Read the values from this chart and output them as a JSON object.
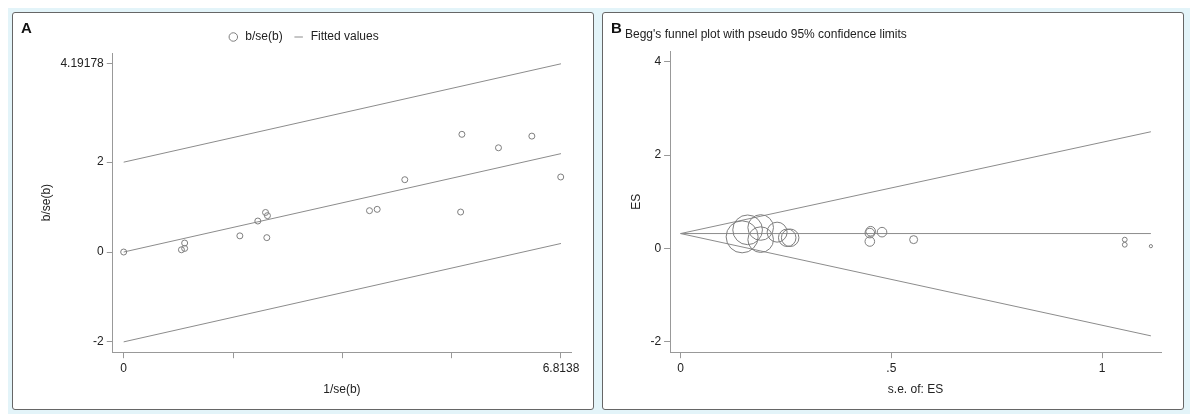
{
  "chart_data": [
    {
      "type": "scatter",
      "annotations": [
        "A"
      ],
      "xlabel": "1/se(b)",
      "ylabel": "b/se(b)",
      "xlim": [
        -0.17,
        6.97
      ],
      "ylim": [
        -2.23,
        4.43
      ],
      "xticks": [
        0,
        {
          "value": 1.70345,
          "label": null
        },
        {
          "value": 3.4069,
          "label": null
        },
        {
          "value": 5.11035,
          "label": null
        },
        6.8138
      ],
      "yticks": [
        -2,
        0,
        2,
        4.19178
      ],
      "grid": false,
      "legend": "top",
      "series": [
        {
          "name": "b/se(b)",
          "marker": "circle",
          "color": "#7f7f7f",
          "x": [
            0,
            0.9,
            0.95,
            0.95,
            1.81,
            2.09,
            2.21,
            2.24,
            2.23,
            3.83,
            3.95,
            4.38,
            5.25,
            5.27,
            5.84,
            6.36,
            6.81
          ],
          "values": [
            0,
            0.05,
            0.08,
            0.2,
            0.36,
            0.69,
            0.88,
            0.81,
            0.32,
            0.92,
            0.95,
            1.61,
            0.89,
            2.62,
            2.32,
            2.58,
            1.67
          ]
        },
        {
          "name": "Fitted values",
          "type": "line",
          "marker": "none",
          "color": "#8c8c8c",
          "x": [
            0,
            6.8138
          ],
          "values": [
            0,
            2.19
          ]
        },
        {
          "type": "line",
          "marker": "none",
          "color": "#8c8c8c",
          "x": [
            0,
            6.8138
          ],
          "values": [
            2,
            4.19
          ]
        },
        {
          "type": "line",
          "marker": "none",
          "color": "#8c8c8c",
          "x": [
            0,
            6.8138
          ],
          "values": [
            -2,
            0.19
          ]
        }
      ]
    },
    {
      "type": "bubble",
      "title": "Begg's funnel plot with pseudo 95% confidence limits",
      "annotations": [
        "B"
      ],
      "xlabel": "s.e. of: ES",
      "ylabel": "ES",
      "xlim": [
        -0.025,
        1.14
      ],
      "ylim": [
        -2.22,
        4.22
      ],
      "xticks": [
        0,
        {
          "value": 0.5,
          "label": ".5"
        },
        1
      ],
      "yticks": [
        -2,
        0,
        2,
        4
      ],
      "grid": false,
      "legend": false,
      "series": [
        {
          "marker": "circle",
          "color": "#7f7f7f",
          "x": [
            0.146,
            0.159,
            0.19,
            0.19,
            0.229,
            0.253,
            0.26,
            0.451,
            0.449,
            0.449,
            0.478,
            0.553,
            1.054,
            1.054,
            1.116
          ],
          "values": [
            0.25,
            0.4,
            0.45,
            0.19,
            0.35,
            0.23,
            0.23,
            0.37,
            0.33,
            0.15,
            0.35,
            0.19,
            0.19,
            0.08,
            0.05
          ],
          "sizes": [
            1,
            0.86,
            0.64,
            0.64,
            0.39,
            0.3,
            0.3,
            0.09,
            0.09,
            0.09,
            0.09,
            0.0625,
            0.0225,
            0.0225,
            0.01
          ]
        },
        {
          "type": "line",
          "marker": "none",
          "color": "#8c8c8c",
          "x": [
            0,
            1.116
          ],
          "values": [
            0.32,
            0.32
          ]
        },
        {
          "type": "line",
          "marker": "none",
          "color": "#8c8c8c",
          "x": [
            0,
            1.116
          ],
          "values": [
            0.32,
            2.5
          ]
        },
        {
          "type": "line",
          "marker": "none",
          "color": "#8c8c8c",
          "x": [
            0,
            1.116
          ],
          "values": [
            0.32,
            -1.87
          ]
        }
      ]
    }
  ]
}
